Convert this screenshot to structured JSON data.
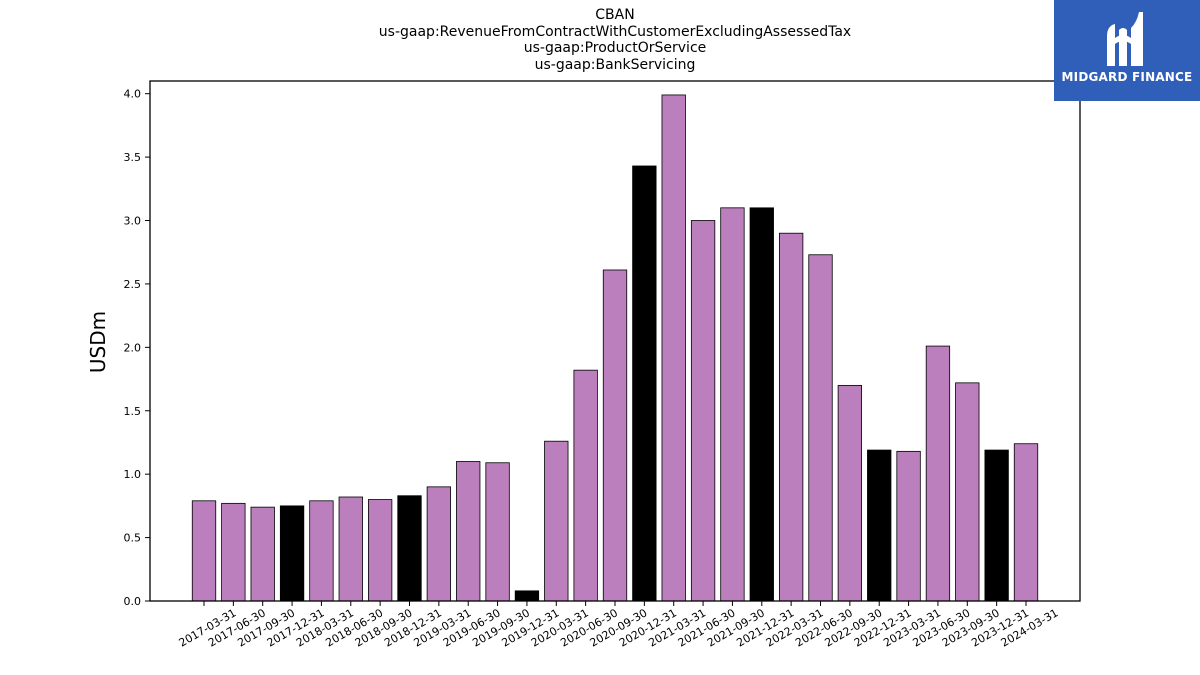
{
  "chart_data": {
    "type": "bar",
    "title_lines": [
      "CBAN",
      "us-gaap:RevenueFromContractWithCustomerExcludingAssessedTax",
      "us-gaap:ProductOrService",
      "us-gaap:BankServicing"
    ],
    "ylabel": "USDm",
    "xlabel": "",
    "ylim": [
      0,
      4.1
    ],
    "yticks": [
      "0.0",
      "0.5",
      "1.0",
      "1.5",
      "2.0",
      "2.5",
      "3.0",
      "3.5",
      "4.0"
    ],
    "grid": false,
    "categories": [
      "2017-03-31",
      "2017-06-30",
      "2017-09-30",
      "2017-12-31",
      "2018-03-31",
      "2018-06-30",
      "2018-09-30",
      "2018-12-31",
      "2019-03-31",
      "2019-06-30",
      "2019-09-30",
      "2019-12-31",
      "2020-03-31",
      "2020-06-30",
      "2020-09-30",
      "2020-12-31",
      "2021-03-31",
      "2021-06-30",
      "2021-09-30",
      "2021-12-31",
      "2022-03-31",
      "2022-06-30",
      "2022-09-30",
      "2022-12-31",
      "2023-03-31",
      "2023-06-30",
      "2023-09-30",
      "2023-12-31",
      "2024-03-31"
    ],
    "values": [
      0.79,
      0.77,
      0.74,
      0.75,
      0.79,
      0.82,
      0.8,
      0.83,
      0.9,
      1.1,
      1.09,
      0.08,
      1.26,
      1.82,
      2.61,
      3.43,
      3.99,
      3.0,
      3.1,
      3.1,
      2.9,
      2.73,
      1.7,
      1.19,
      1.18,
      2.01,
      1.72,
      1.19,
      1.24
    ],
    "bar_colors": [
      "#bb7fbd",
      "#bb7fbd",
      "#bb7fbd",
      "#000000",
      "#bb7fbd",
      "#bb7fbd",
      "#bb7fbd",
      "#000000",
      "#bb7fbd",
      "#bb7fbd",
      "#bb7fbd",
      "#000000",
      "#bb7fbd",
      "#bb7fbd",
      "#bb7fbd",
      "#000000",
      "#bb7fbd",
      "#bb7fbd",
      "#bb7fbd",
      "#000000",
      "#bb7fbd",
      "#bb7fbd",
      "#bb7fbd",
      "#000000",
      "#bb7fbd",
      "#bb7fbd",
      "#bb7fbd",
      "#000000",
      "#bb7fbd"
    ]
  },
  "logo": {
    "text": "MIDGARD FINANCE",
    "background": "#2f5fb8"
  }
}
